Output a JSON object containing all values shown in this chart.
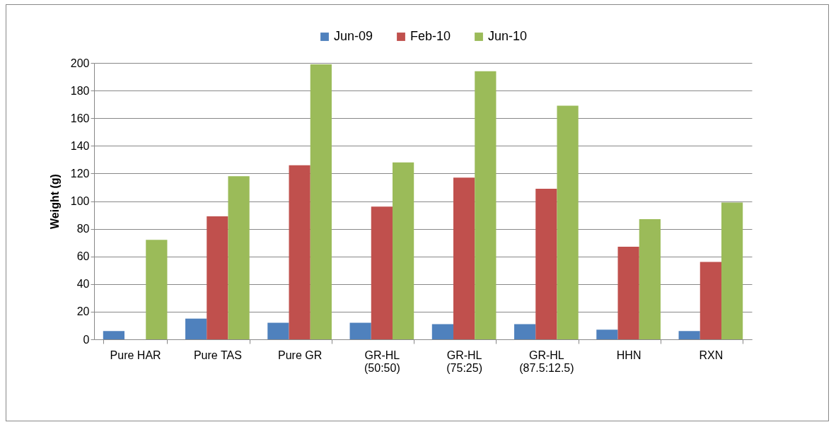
{
  "chart_data": {
    "type": "bar",
    "ylabel": "Weight (g)",
    "categories": [
      "Pure HAR",
      "Pure TAS",
      "Pure GR",
      "GR-HL\n(50:50)",
      "GR-HL\n(75:25)",
      "GR-HL\n(87.5:12.5)",
      "HHN",
      "RXN"
    ],
    "series": [
      {
        "name": "Jun-09",
        "color": "#4f81bd",
        "values": [
          6,
          15,
          12,
          12,
          11,
          11,
          7,
          6
        ]
      },
      {
        "name": "Feb-10",
        "color": "#c0504d",
        "values": [
          null,
          89,
          126,
          96,
          117,
          109,
          67,
          56
        ]
      },
      {
        "name": "Jun-10",
        "color": "#9bbb59",
        "values": [
          72,
          118,
          199,
          128,
          194,
          169,
          87,
          99
        ]
      }
    ],
    "ylim": [
      0,
      200
    ],
    "yticks": [
      0,
      20,
      40,
      60,
      80,
      100,
      120,
      140,
      160,
      180,
      200
    ],
    "grid": "y",
    "legend": "top"
  }
}
